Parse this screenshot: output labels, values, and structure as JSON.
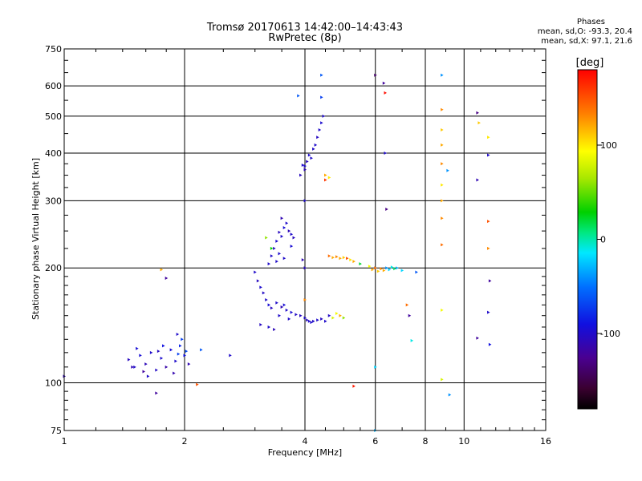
{
  "chart_data": {
    "type": "scatter",
    "title": "Tromsø 20170613 14:42:00–14:43:43",
    "subtitle": "RwPretec (8p)",
    "xlabel": "Frequency [MHz]",
    "ylabel": "Stationary phase Virtual Height [km]",
    "x_scale": "log",
    "y_scale": "log",
    "xlim": [
      1,
      16
    ],
    "ylim": [
      75,
      750
    ],
    "x_ticks": [
      1,
      2,
      4,
      6,
      8,
      10,
      16
    ],
    "x_tick_labels": [
      "1",
      "2",
      "4",
      "6",
      "8",
      "10",
      "16"
    ],
    "y_ticks": [
      75,
      100,
      200,
      300,
      400,
      500,
      600,
      750
    ],
    "y_tick_labels": [
      "75",
      "100",
      "200",
      "300",
      "400",
      "500",
      "600",
      "750"
    ],
    "grid": true,
    "colorbar": {
      "label": "[deg]",
      "range": [
        -180,
        180
      ],
      "ticks": [
        100,
        0,
        -100
      ],
      "tick_labels": [
        "100",
        "0",
        "-100"
      ]
    },
    "phases": {
      "title": "Phases",
      "o_line": "mean, sd,O: -93.3, 20.4",
      "x_line": "mean, sd,X:  97.1, 21.6"
    },
    "series": [
      {
        "name": "echo clusters",
        "points": [
          [
            1.0,
            104,
            -110
          ],
          [
            1.45,
            115,
            -105
          ],
          [
            1.5,
            110,
            -100
          ],
          [
            1.55,
            118,
            -95
          ],
          [
            1.6,
            112,
            -108
          ],
          [
            1.65,
            120,
            -100
          ],
          [
            1.7,
            108,
            -102
          ],
          [
            1.75,
            116,
            -98
          ],
          [
            1.8,
            110,
            -115
          ],
          [
            1.85,
            122,
            -95
          ],
          [
            1.9,
            114,
            -100
          ],
          [
            1.95,
            125,
            -80
          ],
          [
            2.0,
            118,
            -90
          ],
          [
            2.05,
            112,
            -110
          ],
          [
            1.58,
            107,
            -120
          ],
          [
            1.72,
            121,
            -104
          ],
          [
            1.88,
            106,
            -112
          ],
          [
            1.97,
            130,
            -70
          ],
          [
            2.02,
            121,
            -66
          ],
          [
            1.92,
            134,
            -100
          ],
          [
            1.8,
            188,
            -120
          ],
          [
            1.75,
            198,
            120
          ],
          [
            1.7,
            94,
            -120
          ],
          [
            2.15,
            99,
            150
          ],
          [
            2.6,
            118,
            -100
          ],
          [
            2.2,
            122,
            -60
          ],
          [
            1.62,
            104,
            -100
          ],
          [
            1.52,
            123,
            -95
          ],
          [
            1.48,
            110,
            -110
          ],
          [
            1.77,
            125,
            -90
          ],
          [
            1.93,
            119,
            -70
          ],
          [
            3.0,
            195,
            -100
          ],
          [
            3.05,
            185,
            -105
          ],
          [
            3.1,
            178,
            -98
          ],
          [
            3.15,
            172,
            -102
          ],
          [
            3.2,
            165,
            -100
          ],
          [
            3.25,
            160,
            -95
          ],
          [
            3.3,
            157,
            -105
          ],
          [
            3.4,
            162,
            -100
          ],
          [
            3.5,
            158,
            -110
          ],
          [
            3.6,
            155,
            -100
          ],
          [
            3.7,
            153,
            -96
          ],
          [
            3.8,
            151,
            -102
          ],
          [
            3.9,
            150,
            -105
          ],
          [
            3.1,
            142,
            -104
          ],
          [
            3.25,
            140,
            -100
          ],
          [
            3.35,
            138,
            -108
          ],
          [
            3.45,
            150,
            -100
          ],
          [
            3.55,
            160,
            -95
          ],
          [
            3.65,
            147,
            -100
          ],
          [
            3.3,
            215,
            -100
          ],
          [
            3.35,
            225,
            -102
          ],
          [
            3.4,
            235,
            -98
          ],
          [
            3.45,
            248,
            -105
          ],
          [
            3.5,
            242,
            -100
          ],
          [
            3.55,
            255,
            -95
          ],
          [
            3.6,
            262,
            -100
          ],
          [
            3.65,
            250,
            -108
          ],
          [
            3.7,
            245,
            -100
          ],
          [
            3.5,
            270,
            -110
          ],
          [
            3.75,
            240,
            -105
          ],
          [
            3.4,
            208,
            -100
          ],
          [
            3.45,
            218,
            -98
          ],
          [
            3.25,
            205,
            -100
          ],
          [
            3.2,
            240,
            60
          ],
          [
            3.55,
            212,
            -100
          ],
          [
            3.7,
            228,
            -96
          ],
          [
            3.3,
            225,
            30
          ],
          [
            4.0,
            370,
            -100
          ],
          [
            4.05,
            380,
            -105
          ],
          [
            4.1,
            395,
            -98
          ],
          [
            4.15,
            388,
            -100
          ],
          [
            4.2,
            410,
            -102
          ],
          [
            4.25,
            420,
            -100
          ],
          [
            4.3,
            440,
            -104
          ],
          [
            4.35,
            460,
            -100
          ],
          [
            4.4,
            480,
            -98
          ],
          [
            4.45,
            500,
            -100
          ],
          [
            3.9,
            350,
            -105
          ],
          [
            3.95,
            372,
            -100
          ],
          [
            4.0,
            362,
            -108
          ],
          [
            4.0,
            300,
            -100
          ],
          [
            4.4,
            640,
            -60
          ],
          [
            4.4,
            560,
            -70
          ],
          [
            3.85,
            565,
            -60
          ],
          [
            3.95,
            210,
            -110
          ],
          [
            4.0,
            200,
            -105
          ],
          [
            4.0,
            165,
            130
          ],
          [
            4.0,
            148,
            -100
          ],
          [
            4.05,
            146,
            -105
          ],
          [
            4.1,
            145,
            -100
          ],
          [
            4.15,
            144,
            -98
          ],
          [
            4.2,
            145,
            -102
          ],
          [
            4.3,
            146,
            -100
          ],
          [
            4.4,
            147,
            -104
          ],
          [
            4.5,
            145,
            -100
          ],
          [
            4.6,
            150,
            -102
          ],
          [
            4.7,
            148,
            80
          ],
          [
            4.8,
            152,
            90
          ],
          [
            4.9,
            150,
            120
          ],
          [
            5.0,
            148,
            60
          ],
          [
            4.6,
            215,
            140
          ],
          [
            4.7,
            213,
            120
          ],
          [
            4.8,
            214,
            130
          ],
          [
            4.9,
            212,
            120
          ],
          [
            5.0,
            213,
            110
          ],
          [
            5.1,
            212,
            150
          ],
          [
            5.2,
            210,
            100
          ],
          [
            5.3,
            208,
            120
          ],
          [
            4.5,
            350,
            120
          ],
          [
            4.6,
            345,
            100
          ],
          [
            4.5,
            340,
            160
          ],
          [
            5.3,
            98,
            170
          ],
          [
            5.5,
            205,
            20
          ],
          [
            5.9,
            198,
            120
          ],
          [
            6.0,
            200,
            140
          ],
          [
            6.1,
            196,
            110
          ],
          [
            6.2,
            199,
            130
          ],
          [
            6.3,
            197,
            120
          ],
          [
            6.4,
            200,
            -40
          ],
          [
            6.5,
            198,
            -20
          ],
          [
            6.6,
            201,
            -10
          ],
          [
            6.7,
            199,
            10
          ],
          [
            6.8,
            200,
            -30
          ],
          [
            7.0,
            197,
            -20
          ],
          [
            7.2,
            160,
            140
          ],
          [
            7.3,
            150,
            -120
          ],
          [
            7.4,
            129,
            -10
          ],
          [
            7.6,
            195,
            -60
          ],
          [
            5.8,
            202,
            90
          ],
          [
            6.0,
            640,
            -140
          ],
          [
            6.3,
            610,
            -120
          ],
          [
            6.35,
            575,
            175
          ],
          [
            6.35,
            400,
            -100
          ],
          [
            6.4,
            285,
            -130
          ],
          [
            6.0,
            110,
            -20
          ],
          [
            6.0,
            75,
            -30
          ],
          [
            8.8,
            640,
            -40
          ],
          [
            8.8,
            520,
            130
          ],
          [
            8.8,
            460,
            110
          ],
          [
            8.8,
            420,
            120
          ],
          [
            8.8,
            375,
            130
          ],
          [
            8.8,
            330,
            100
          ],
          [
            8.8,
            300,
            120
          ],
          [
            8.8,
            270,
            130
          ],
          [
            8.8,
            230,
            140
          ],
          [
            8.8,
            155,
            90
          ],
          [
            8.8,
            102,
            80
          ],
          [
            9.2,
            93,
            -40
          ],
          [
            9.1,
            360,
            -40
          ],
          [
            10.8,
            510,
            -130
          ],
          [
            10.9,
            480,
            110
          ],
          [
            10.8,
            340,
            -110
          ],
          [
            11.5,
            440,
            100
          ],
          [
            11.5,
            395,
            -100
          ],
          [
            11.5,
            265,
            150
          ],
          [
            11.5,
            225,
            130
          ],
          [
            11.6,
            185,
            -120
          ],
          [
            11.5,
            153,
            -100
          ],
          [
            10.8,
            131,
            -120
          ],
          [
            11.6,
            126,
            -90
          ]
        ]
      }
    ]
  }
}
